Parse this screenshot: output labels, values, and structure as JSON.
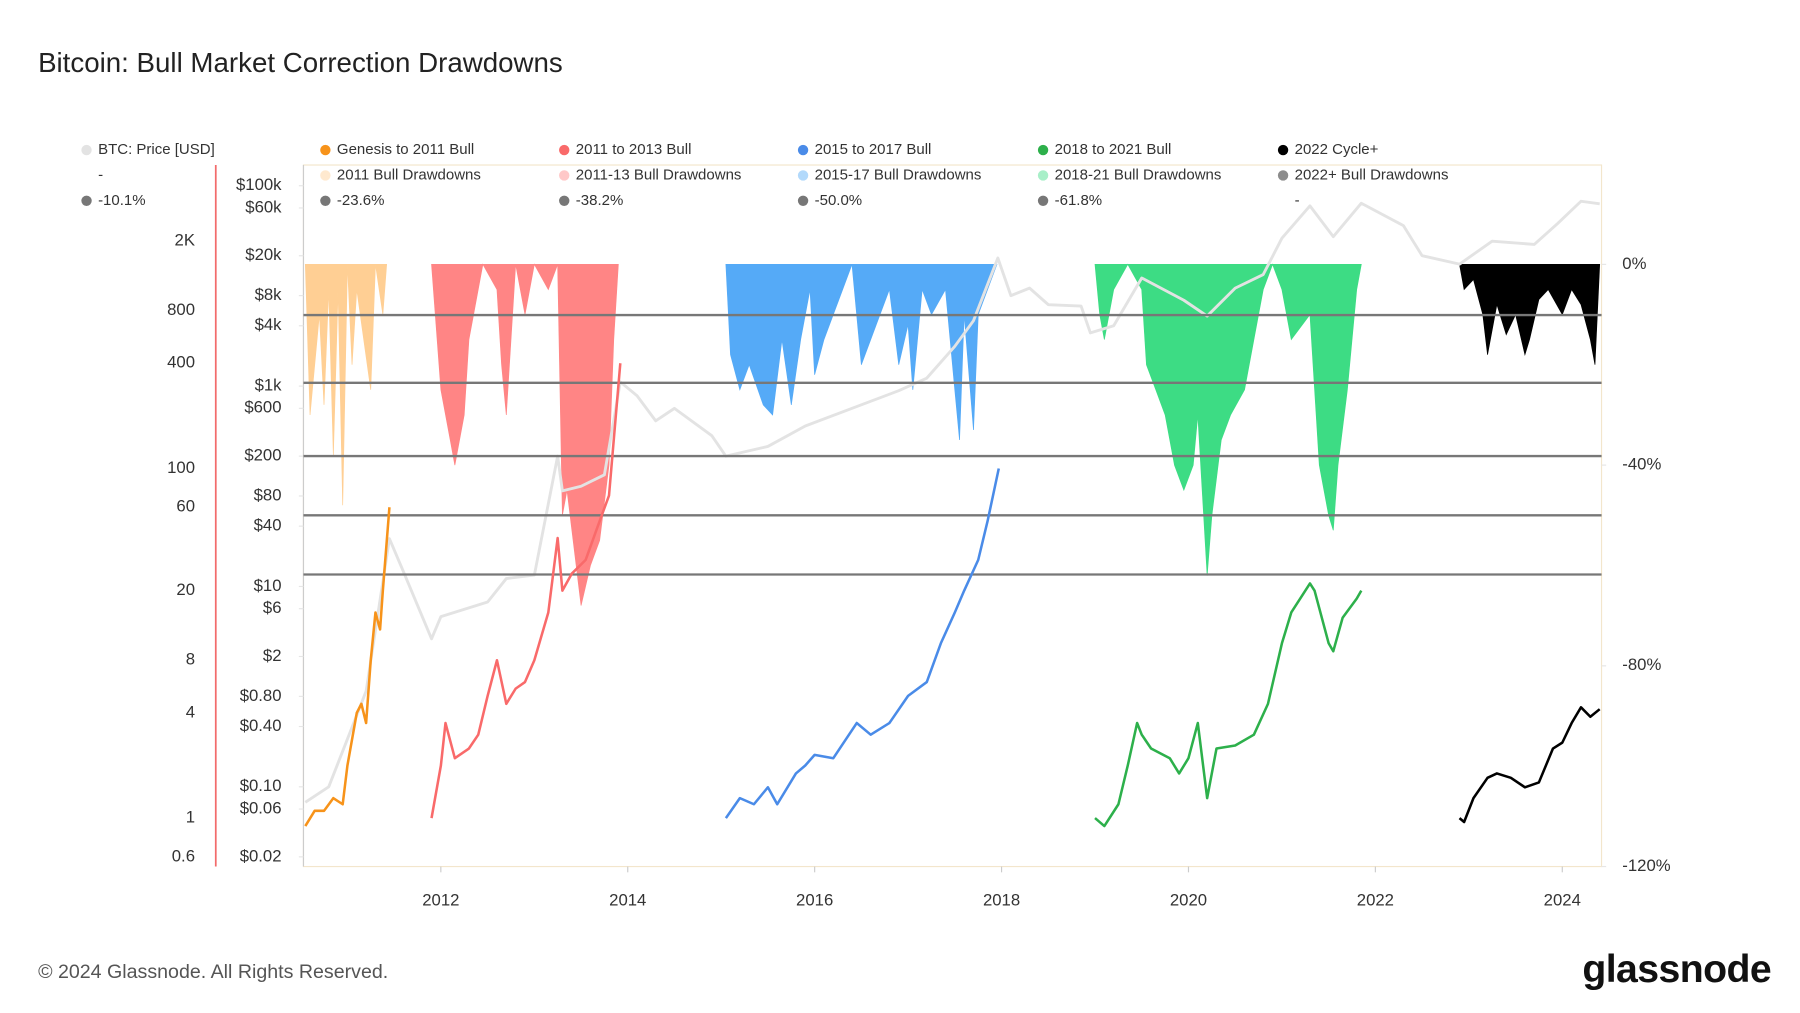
{
  "chart_data": {
    "type": "line",
    "title": "Bitcoin: Bull Market Correction Drawdowns",
    "xlim": [
      2010.53,
      2024.42
    ],
    "xticks": [
      2012,
      2014,
      2016,
      2018,
      2020,
      2022,
      2024
    ],
    "yscale": "log",
    "ylim": [
      0.016,
      161000
    ],
    "yticks": [
      {
        "value": 100000,
        "label": "$100k"
      },
      {
        "value": 60000,
        "label": "$60k"
      },
      {
        "value": 20000,
        "label": "$20k"
      },
      {
        "value": 8000,
        "label": "$8k"
      },
      {
        "value": 4000,
        "label": "$4k"
      },
      {
        "value": 1000,
        "label": "$1k"
      },
      {
        "value": 600,
        "label": "$600"
      },
      {
        "value": 200,
        "label": "$200"
      },
      {
        "value": 80,
        "label": "$80"
      },
      {
        "value": 40,
        "label": "$40"
      },
      {
        "value": 10,
        "label": "$10"
      },
      {
        "value": 6,
        "label": "$6"
      },
      {
        "value": 2,
        "label": "$2"
      },
      {
        "value": 0.8,
        "label": "$0.80"
      },
      {
        "value": 0.4,
        "label": "$0.40"
      },
      {
        "value": 0.1,
        "label": "$0.10"
      },
      {
        "value": 0.06,
        "label": "$0.06"
      },
      {
        "value": 0.02,
        "label": "$0.02"
      }
    ],
    "y2lim": [
      -120,
      19.8
    ],
    "y2ticks": [
      {
        "value": 0,
        "label": "0%"
      },
      {
        "value": -40,
        "label": "-40%"
      },
      {
        "value": -80,
        "label": "-80%"
      },
      {
        "value": -120,
        "label": "-120%"
      }
    ],
    "y3scale": "log",
    "y3lim": [
      0.528,
      5450
    ],
    "y3ticks": [
      {
        "value": 2000,
        "label": "2K"
      },
      800,
      400,
      100,
      60,
      20,
      8,
      4,
      1,
      0.6
    ],
    "series": [
      {
        "name": "BTC: Price [USD]",
        "color": "#e3e3e3",
        "kind": "line",
        "axis": "y",
        "x": [
          2010.55,
          2010.8,
          2011.0,
          2011.2,
          2011.45,
          2011.6,
          2011.9,
          2012.0,
          2012.5,
          2012.7,
          2013.0,
          2013.25,
          2013.3,
          2013.5,
          2013.75,
          2013.92,
          2014.1,
          2014.3,
          2014.5,
          2014.9,
          2015.05,
          2015.5,
          2015.9,
          2016.5,
          2016.9,
          2017.2,
          2017.5,
          2017.7,
          2017.96,
          2018.1,
          2018.3,
          2018.5,
          2018.85,
          2018.95,
          2019.2,
          2019.5,
          2019.95,
          2020.2,
          2020.5,
          2020.8,
          2021.0,
          2021.3,
          2021.55,
          2021.85,
          2022.3,
          2022.5,
          2022.9,
          2023.25,
          2023.7,
          2023.95,
          2024.2,
          2024.4
        ],
        "values": [
          0.07,
          0.1,
          0.3,
          0.9,
          30,
          14,
          3,
          5,
          7,
          12,
          13,
          200,
          90,
          100,
          130,
          1100,
          800,
          450,
          600,
          320,
          200,
          250,
          400,
          650,
          900,
          1200,
          2500,
          4500,
          19000,
          8000,
          9500,
          6500,
          6300,
          3400,
          4000,
          12000,
          7200,
          5000,
          9500,
          13000,
          30000,
          63000,
          31000,
          67000,
          40000,
          20000,
          16500,
          28000,
          26000,
          42000,
          70000,
          66000
        ]
      },
      {
        "name": "Genesis to 2011 Bull",
        "color": "#f7931a",
        "kind": "line",
        "axis": "y3",
        "x": [
          2010.55,
          2010.65,
          2010.75,
          2010.85,
          2010.95,
          2011.0,
          2011.1,
          2011.15,
          2011.2,
          2011.25,
          2011.3,
          2011.35,
          2011.38,
          2011.45
        ],
        "values": [
          0.9,
          1.1,
          1.1,
          1.3,
          1.2,
          2,
          4,
          4.5,
          3.5,
          8,
          15,
          12,
          20,
          60
        ]
      },
      {
        "name": "2011 to 2013 Bull",
        "color": "#f96a6a",
        "kind": "line",
        "axis": "y3",
        "x": [
          2011.9,
          2012.0,
          2012.05,
          2012.15,
          2012.3,
          2012.4,
          2012.5,
          2012.6,
          2012.7,
          2012.8,
          2012.9,
          2013.0,
          2013.15,
          2013.25,
          2013.3,
          2013.4,
          2013.55,
          2013.7,
          2013.8,
          2013.92
        ],
        "values": [
          1,
          2,
          3.5,
          2.2,
          2.5,
          3,
          5,
          8,
          4.5,
          5.5,
          6,
          8,
          15,
          40,
          20,
          25,
          30,
          50,
          70,
          400
        ]
      },
      {
        "name": "2015 to 2017 Bull",
        "color": "#4a8be8",
        "kind": "line",
        "axis": "y3",
        "x": [
          2015.05,
          2015.2,
          2015.35,
          2015.5,
          2015.6,
          2015.8,
          2015.9,
          2016.0,
          2016.2,
          2016.45,
          2016.6,
          2016.8,
          2017.0,
          2017.2,
          2017.35,
          2017.5,
          2017.6,
          2017.75,
          2017.85,
          2017.97
        ],
        "values": [
          1,
          1.3,
          1.2,
          1.5,
          1.2,
          1.8,
          2,
          2.3,
          2.2,
          3.5,
          3,
          3.5,
          5,
          6,
          10,
          15,
          20,
          30,
          50,
          100
        ]
      },
      {
        "name": "2018 to 2021 Bull",
        "color": "#2db04b",
        "kind": "line",
        "axis": "y3",
        "x": [
          2019.0,
          2019.1,
          2019.25,
          2019.35,
          2019.45,
          2019.5,
          2019.6,
          2019.8,
          2019.9,
          2020.0,
          2020.1,
          2020.2,
          2020.3,
          2020.5,
          2020.7,
          2020.85,
          2021.0,
          2021.1,
          2021.3,
          2021.35,
          2021.5,
          2021.55,
          2021.65,
          2021.8,
          2021.85
        ],
        "values": [
          1,
          0.9,
          1.2,
          2,
          3.5,
          3,
          2.5,
          2.2,
          1.8,
          2.2,
          3.5,
          1.3,
          2.5,
          2.6,
          3,
          4.5,
          10,
          15,
          22,
          20,
          10,
          9,
          14,
          18,
          20
        ]
      },
      {
        "name": "2022 Cycle+",
        "color": "#000000",
        "kind": "line",
        "axis": "y3",
        "x": [
          2022.9,
          2022.95,
          2023.05,
          2023.2,
          2023.3,
          2023.45,
          2023.6,
          2023.75,
          2023.9,
          2024.0,
          2024.1,
          2024.2,
          2024.3,
          2024.4
        ],
        "values": [
          1,
          0.95,
          1.3,
          1.7,
          1.8,
          1.7,
          1.5,
          1.6,
          2.5,
          2.7,
          3.5,
          4.3,
          3.8,
          4.2
        ]
      },
      {
        "name": "2011 Bull Drawdowns",
        "color": "#ffcf94",
        "kind": "area",
        "axis": "y2",
        "x": [
          2010.55,
          2010.6,
          2010.7,
          2010.75,
          2010.8,
          2010.85,
          2010.9,
          2010.95,
          2011.0,
          2011.05,
          2011.1,
          2011.25,
          2011.3,
          2011.38,
          2011.42
        ],
        "values": [
          0,
          -30,
          -10,
          -28,
          -5,
          -38,
          -5,
          -48,
          0,
          -20,
          -5,
          -25,
          0,
          -10,
          0
        ]
      },
      {
        "name": "2011-13 Bull Drawdowns",
        "color": "#ff8585",
        "kind": "area",
        "axis": "y2",
        "x": [
          2011.9,
          2012.0,
          2012.1,
          2012.15,
          2012.25,
          2012.3,
          2012.45,
          2012.6,
          2012.65,
          2012.7,
          2012.8,
          2012.9,
          2013.0,
          2013.15,
          2013.25,
          2013.3,
          2013.35,
          2013.5,
          2013.6,
          2013.7,
          2013.8,
          2013.85,
          2013.9
        ],
        "values": [
          0,
          -25,
          -35,
          -40,
          -30,
          -15,
          0,
          -5,
          -20,
          -30,
          0,
          -10,
          0,
          -5,
          0,
          -50,
          -45,
          -68,
          -60,
          -55,
          -40,
          -15,
          0
        ]
      },
      {
        "name": "2015-17 Bull Drawdowns",
        "color": "#55aaf7",
        "kind": "area",
        "axis": "y2",
        "x": [
          2015.05,
          2015.1,
          2015.2,
          2015.3,
          2015.45,
          2015.55,
          2015.65,
          2015.75,
          2015.85,
          2015.95,
          2016.0,
          2016.1,
          2016.2,
          2016.3,
          2016.4,
          2016.5,
          2016.6,
          2016.7,
          2016.8,
          2016.9,
          2017.0,
          2017.05,
          2017.15,
          2017.25,
          2017.4,
          2017.5,
          2017.55,
          2017.6,
          2017.7,
          2017.75,
          2017.85,
          2017.95
        ],
        "values": [
          0,
          -18,
          -25,
          -20,
          -28,
          -30,
          -15,
          -28,
          -15,
          -5,
          -22,
          -15,
          -10,
          -5,
          0,
          -20,
          -15,
          -10,
          -5,
          -20,
          -12,
          -25,
          -5,
          -10,
          -5,
          -25,
          -35,
          -10,
          -33,
          -10,
          -5,
          0
        ]
      },
      {
        "name": "2018-21 Bull Drawdowns",
        "color": "#3ddc84",
        "kind": "area",
        "axis": "y2",
        "x": [
          2019.0,
          2019.05,
          2019.1,
          2019.2,
          2019.35,
          2019.5,
          2019.55,
          2019.65,
          2019.75,
          2019.85,
          2019.95,
          2020.05,
          2020.1,
          2020.2,
          2020.25,
          2020.35,
          2020.45,
          2020.6,
          2020.7,
          2020.8,
          2020.9,
          2021.0,
          2021.1,
          2021.3,
          2021.4,
          2021.5,
          2021.55,
          2021.6,
          2021.7,
          2021.8,
          2021.85
        ],
        "values": [
          0,
          -10,
          -15,
          -5,
          0,
          -5,
          -20,
          -25,
          -30,
          -40,
          -45,
          -40,
          -30,
          -62,
          -50,
          -35,
          -30,
          -25,
          -15,
          -5,
          0,
          -5,
          -15,
          -10,
          -40,
          -50,
          -53,
          -40,
          -25,
          -5,
          0
        ]
      },
      {
        "name": "2022+ Bull Drawdowns",
        "color": "#000000",
        "kind": "area",
        "axis": "y2",
        "x": [
          2022.9,
          2022.95,
          2023.05,
          2023.15,
          2023.2,
          2023.3,
          2023.4,
          2023.5,
          2023.6,
          2023.65,
          2023.75,
          2023.85,
          2024.0,
          2024.1,
          2024.2,
          2024.3,
          2024.35,
          2024.4
        ],
        "values": [
          0,
          -5,
          -3,
          -10,
          -18,
          -8,
          -14,
          -10,
          -18,
          -15,
          -7,
          -5,
          -10,
          -5,
          -8,
          -15,
          -20,
          0
        ]
      }
    ],
    "levels": [
      {
        "value": -10.1,
        "label": "-10.1%",
        "color": "#777777"
      },
      {
        "value": -23.6,
        "label": "-23.6%",
        "color": "#777777"
      },
      {
        "value": -38.2,
        "label": "-38.2%",
        "color": "#777777"
      },
      {
        "value": -50,
        "label": "-50.0%",
        "color": "#777777"
      },
      {
        "value": -61.8,
        "label": "-61.8%",
        "color": "#777777"
      }
    ],
    "legend_placeholders": [
      "-",
      "-"
    ]
  },
  "footer": {
    "copyright": "© 2024 Glassnode. All Rights Reserved.",
    "logo": "glassnode"
  }
}
